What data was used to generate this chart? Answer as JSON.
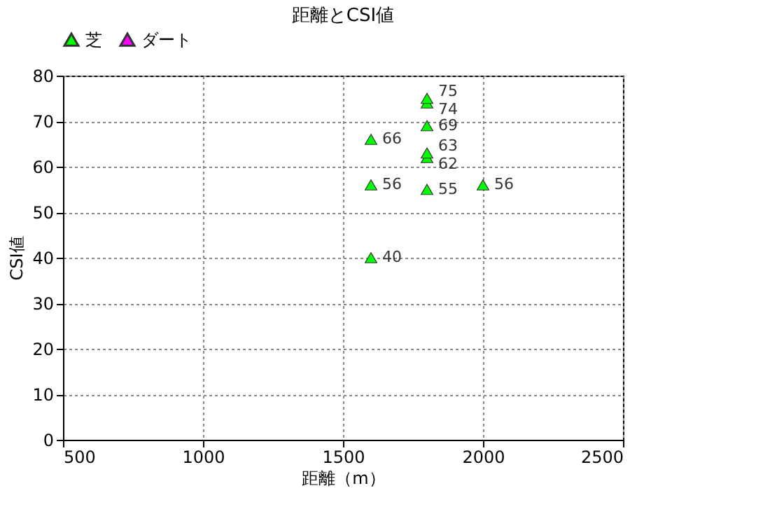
{
  "chart_data": {
    "type": "scatter",
    "title": "距離とCSI値",
    "xlabel": "距離（m）",
    "ylabel": "CSI値",
    "series": [
      {
        "name": "芝",
        "color": "#00ff00",
        "x": [
          1600,
          1600,
          1600,
          1800,
          1800,
          1800,
          1800,
          1800,
          1800,
          2000
        ],
        "values": [
          40,
          56,
          66,
          55,
          62,
          63,
          69,
          74,
          75,
          56
        ]
      },
      {
        "name": "ダート",
        "color": "#ff00ff"
      }
    ],
    "xlim": [
      500,
      2500
    ],
    "xticks": [
      500,
      1000,
      1500,
      2000,
      2500
    ],
    "ylim": [
      0,
      80
    ],
    "yticks": [
      0,
      10,
      20,
      30,
      40,
      50,
      60,
      70,
      80
    ],
    "grid": true,
    "legend": "top left",
    "marker": "triangle",
    "data_labels": true
  }
}
